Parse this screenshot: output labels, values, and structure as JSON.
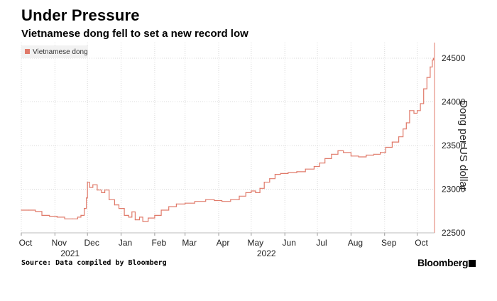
{
  "header": {
    "title": "Under Pressure",
    "subtitle": "Vietnamese dong fell to set a new record low"
  },
  "footer": {
    "source": "Source: Data compiled by Bloomberg",
    "brand": "Bloomberg"
  },
  "colors": {
    "series": "#e07a6a",
    "grid": "#d9d9d9",
    "axis": "#e07a6a"
  },
  "chart_data": {
    "type": "line",
    "title": "Under Pressure",
    "subtitle": "Vietnamese dong fell to set a new record low",
    "ylabel": "Dong per US dollar",
    "ylim": [
      22500,
      24500
    ],
    "y_ticks": [
      22500,
      23000,
      23500,
      24000,
      24500
    ],
    "x_range": [
      "2021-10-01",
      "2022-10-17"
    ],
    "x_ticks": [
      {
        "date": "2021-10-01",
        "label": "Oct"
      },
      {
        "date": "2021-11-01",
        "label": "Nov"
      },
      {
        "date": "2021-12-01",
        "label": "Dec"
      },
      {
        "date": "2022-01-01",
        "label": "Jan"
      },
      {
        "date": "2022-02-01",
        "label": "Feb"
      },
      {
        "date": "2022-03-01",
        "label": "Mar"
      },
      {
        "date": "2022-04-01",
        "label": "Apr"
      },
      {
        "date": "2022-05-01",
        "label": "May"
      },
      {
        "date": "2022-06-01",
        "label": "Jun"
      },
      {
        "date": "2022-07-01",
        "label": "Jul"
      },
      {
        "date": "2022-08-01",
        "label": "Aug"
      },
      {
        "date": "2022-09-01",
        "label": "Sep"
      },
      {
        "date": "2022-10-01",
        "label": "Oct"
      }
    ],
    "year_labels": [
      {
        "date": "2021-11-15",
        "label": "2021"
      },
      {
        "date": "2022-05-15",
        "label": "2022"
      }
    ],
    "legend": {
      "position": "top-left"
    },
    "grid": true,
    "series": [
      {
        "name": "Vietnamese dong",
        "points": [
          [
            "2021-10-01",
            22760
          ],
          [
            "2021-10-08",
            22760
          ],
          [
            "2021-10-14",
            22745
          ],
          [
            "2021-10-20",
            22700
          ],
          [
            "2021-10-27",
            22690
          ],
          [
            "2021-11-03",
            22680
          ],
          [
            "2021-11-10",
            22660
          ],
          [
            "2021-11-17",
            22660
          ],
          [
            "2021-11-22",
            22680
          ],
          [
            "2021-11-25",
            22700
          ],
          [
            "2021-11-28",
            22780
          ],
          [
            "2021-11-30",
            22900
          ],
          [
            "2021-12-01",
            23080
          ],
          [
            "2021-12-03",
            23020
          ],
          [
            "2021-12-06",
            23050
          ],
          [
            "2021-12-10",
            22990
          ],
          [
            "2021-12-14",
            22960
          ],
          [
            "2021-12-17",
            22990
          ],
          [
            "2021-12-21",
            22880
          ],
          [
            "2021-12-26",
            22820
          ],
          [
            "2021-12-30",
            22780
          ],
          [
            "2022-01-04",
            22700
          ],
          [
            "2022-01-08",
            22680
          ],
          [
            "2022-01-11",
            22740
          ],
          [
            "2022-01-14",
            22650
          ],
          [
            "2022-01-18",
            22680
          ],
          [
            "2022-01-21",
            22630
          ],
          [
            "2022-01-26",
            22670
          ],
          [
            "2022-02-01",
            22700
          ],
          [
            "2022-02-07",
            22760
          ],
          [
            "2022-02-14",
            22800
          ],
          [
            "2022-02-21",
            22830
          ],
          [
            "2022-03-01",
            22840
          ],
          [
            "2022-03-10",
            22860
          ],
          [
            "2022-03-20",
            22880
          ],
          [
            "2022-03-28",
            22870
          ],
          [
            "2022-04-04",
            22860
          ],
          [
            "2022-04-12",
            22880
          ],
          [
            "2022-04-20",
            22920
          ],
          [
            "2022-04-26",
            22960
          ],
          [
            "2022-05-01",
            22980
          ],
          [
            "2022-05-05",
            22960
          ],
          [
            "2022-05-09",
            23010
          ],
          [
            "2022-05-13",
            23080
          ],
          [
            "2022-05-18",
            23120
          ],
          [
            "2022-05-23",
            23170
          ],
          [
            "2022-05-28",
            23180
          ],
          [
            "2022-06-04",
            23190
          ],
          [
            "2022-06-12",
            23200
          ],
          [
            "2022-06-20",
            23230
          ],
          [
            "2022-06-28",
            23260
          ],
          [
            "2022-07-03",
            23300
          ],
          [
            "2022-07-08",
            23350
          ],
          [
            "2022-07-14",
            23400
          ],
          [
            "2022-07-20",
            23440
          ],
          [
            "2022-07-25",
            23420
          ],
          [
            "2022-08-01",
            23380
          ],
          [
            "2022-08-08",
            23370
          ],
          [
            "2022-08-15",
            23390
          ],
          [
            "2022-08-22",
            23400
          ],
          [
            "2022-08-28",
            23420
          ],
          [
            "2022-09-02",
            23480
          ],
          [
            "2022-09-08",
            23540
          ],
          [
            "2022-09-14",
            23600
          ],
          [
            "2022-09-18",
            23690
          ],
          [
            "2022-09-21",
            23760
          ],
          [
            "2022-09-24",
            23900
          ],
          [
            "2022-09-28",
            23870
          ],
          [
            "2022-10-01",
            23900
          ],
          [
            "2022-10-04",
            23980
          ],
          [
            "2022-10-07",
            24150
          ],
          [
            "2022-10-10",
            24280
          ],
          [
            "2022-10-13",
            24400
          ],
          [
            "2022-10-15",
            24480
          ],
          [
            "2022-10-16",
            24500
          ]
        ]
      }
    ]
  }
}
